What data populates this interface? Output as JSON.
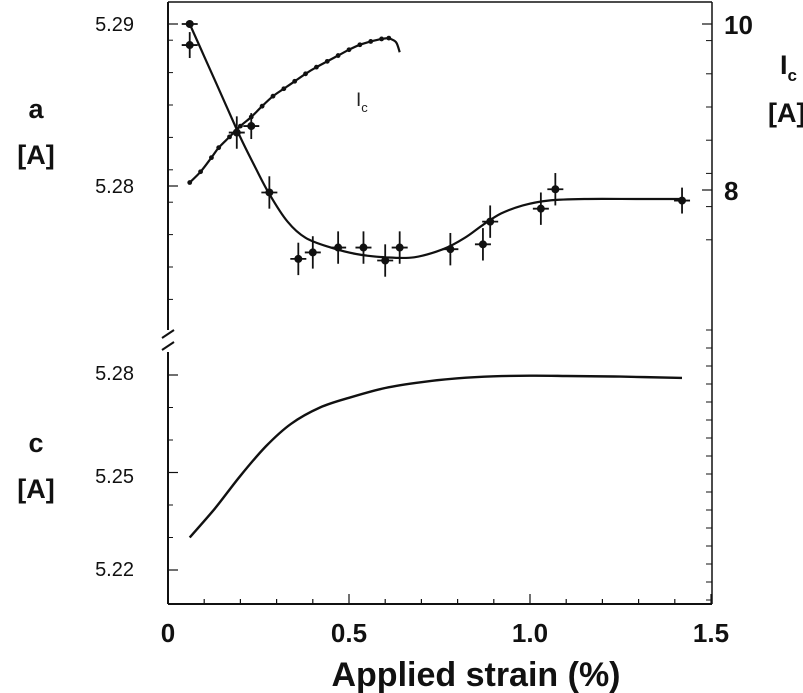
{
  "chart_data": {
    "type": "line",
    "xlabel": "Applied strain (%)",
    "x_ticks": [
      "0",
      "0.5",
      "1.0",
      "1.5"
    ],
    "xlim": [
      0,
      1.5
    ],
    "panels": [
      {
        "id": "a",
        "ylabel": "a",
        "yunit": "[A]",
        "yticks": [
          "5.29",
          "5.28"
        ],
        "ylim": [
          5.2725,
          5.291
        ],
        "right_axis": {
          "label": "I",
          "label_sub": "c",
          "unit": "[A]",
          "ticks": [
            "10",
            "8"
          ],
          "ylim": [
            7.2,
            10.1
          ]
        },
        "series": [
          {
            "name": "a",
            "axis": "left",
            "points": [
              {
                "x": 0.06,
                "y": 5.29,
                "err": 0.0
              },
              {
                "x": 0.06,
                "y": 5.2887,
                "err": 0.0008
              },
              {
                "x": 0.19,
                "y": 5.2833,
                "err": 0.001
              },
              {
                "x": 0.23,
                "y": 5.2837,
                "err": 0.0008
              },
              {
                "x": 0.28,
                "y": 5.2796,
                "err": 0.001
              },
              {
                "x": 0.36,
                "y": 5.2755,
                "err": 0.001
              },
              {
                "x": 0.4,
                "y": 5.2759,
                "err": 0.001
              },
              {
                "x": 0.47,
                "y": 5.2762,
                "err": 0.001
              },
              {
                "x": 0.54,
                "y": 5.2762,
                "err": 0.001
              },
              {
                "x": 0.6,
                "y": 5.2754,
                "err": 0.001
              },
              {
                "x": 0.64,
                "y": 5.2762,
                "err": 0.001
              },
              {
                "x": 0.78,
                "y": 5.2761,
                "err": 0.001
              },
              {
                "x": 0.87,
                "y": 5.2764,
                "err": 0.001
              },
              {
                "x": 0.89,
                "y": 5.2778,
                "err": 0.001
              },
              {
                "x": 1.03,
                "y": 5.2786,
                "err": 0.001
              },
              {
                "x": 1.07,
                "y": 5.2798,
                "err": 0.001
              },
              {
                "x": 1.42,
                "y": 5.2791,
                "err": 0.0008
              }
            ],
            "fit": [
              [
                0.06,
                5.29
              ],
              [
                0.1,
                5.288
              ],
              [
                0.15,
                5.2855
              ],
              [
                0.2,
                5.283
              ],
              [
                0.24,
                5.2812
              ],
              [
                0.28,
                5.2795
              ],
              [
                0.33,
                5.2778
              ],
              [
                0.38,
                5.2768
              ],
              [
                0.45,
                5.2762
              ],
              [
                0.52,
                5.2758
              ],
              [
                0.6,
                5.2756
              ],
              [
                0.68,
                5.2756
              ],
              [
                0.76,
                5.2761
              ],
              [
                0.82,
                5.2768
              ],
              [
                0.87,
                5.2776
              ],
              [
                0.92,
                5.2783
              ],
              [
                0.98,
                5.2788
              ],
              [
                1.05,
                5.2791
              ],
              [
                1.15,
                5.2792
              ],
              [
                1.3,
                5.2792
              ],
              [
                1.42,
                5.2792
              ]
            ]
          },
          {
            "name": "Ic",
            "label": "I",
            "label_sub": "c",
            "axis": "right",
            "points": [
              [
                0.06,
                8.09
              ],
              [
                0.09,
                8.22
              ],
              [
                0.12,
                8.39
              ],
              [
                0.14,
                8.51
              ],
              [
                0.17,
                8.64
              ],
              [
                0.2,
                8.77
              ],
              [
                0.23,
                8.88
              ],
              [
                0.26,
                9.01
              ],
              [
                0.29,
                9.13
              ],
              [
                0.32,
                9.22
              ],
              [
                0.35,
                9.31
              ],
              [
                0.38,
                9.4
              ],
              [
                0.41,
                9.48
              ],
              [
                0.44,
                9.55
              ],
              [
                0.47,
                9.62
              ],
              [
                0.5,
                9.69
              ],
              [
                0.53,
                9.75
              ],
              [
                0.56,
                9.79
              ],
              [
                0.59,
                9.82
              ],
              [
                0.61,
                9.83
              ]
            ],
            "tail": [
              [
                0.61,
                9.83
              ],
              [
                0.63,
                9.78
              ],
              [
                0.64,
                9.66
              ]
            ]
          }
        ]
      },
      {
        "id": "c",
        "ylabel": "c",
        "yunit": "[A]",
        "yticks": [
          "5.28",
          "5.25",
          "5.22"
        ],
        "ylim": [
          5.216,
          5.287
        ],
        "series": [
          {
            "name": "c",
            "curve": [
              [
                0.06,
                5.23
              ],
              [
                0.13,
                5.239
              ],
              [
                0.2,
                5.249
              ],
              [
                0.27,
                5.258
              ],
              [
                0.34,
                5.265
              ],
              [
                0.42,
                5.27
              ],
              [
                0.5,
                5.273
              ],
              [
                0.6,
                5.276
              ],
              [
                0.7,
                5.2778
              ],
              [
                0.8,
                5.279
              ],
              [
                0.9,
                5.2796
              ],
              [
                1.0,
                5.2798
              ],
              [
                1.1,
                5.2797
              ],
              [
                1.25,
                5.2795
              ],
              [
                1.42,
                5.2791
              ]
            ]
          }
        ]
      }
    ]
  }
}
